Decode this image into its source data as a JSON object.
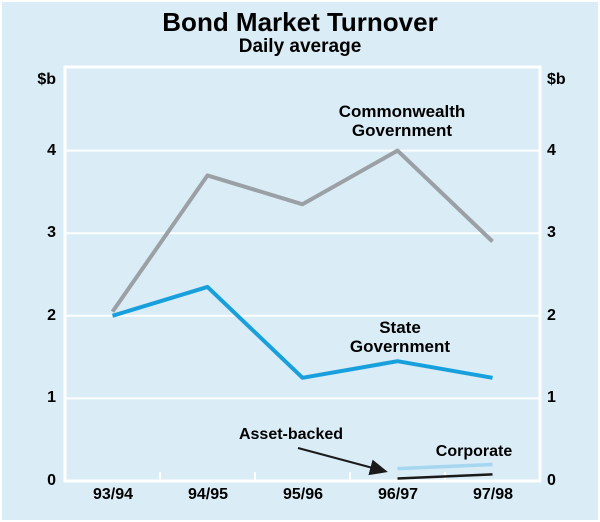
{
  "title": "Bond Market Turnover",
  "subtitle": "Daily average",
  "chart_data": {
    "type": "line",
    "title": "Bond Market Turnover",
    "subtitle": "Daily average",
    "unit_left": "$b",
    "unit_right": "$b",
    "categories": [
      "93/94",
      "94/95",
      "95/96",
      "96/97",
      "97/98"
    ],
    "series": [
      {
        "id": "commonwealth-government",
        "name": "Commonwealth Government",
        "color": "#9aa0a5",
        "values": [
          2.05,
          3.7,
          3.35,
          4.0,
          2.9
        ]
      },
      {
        "id": "state-government",
        "name": "State Government",
        "color": "#18a0dc",
        "values": [
          2.0,
          2.35,
          1.25,
          1.45,
          1.25
        ]
      },
      {
        "id": "corporate",
        "name": "Corporate",
        "color": "#a6d6f0",
        "values": [
          null,
          null,
          null,
          0.15,
          0.2
        ]
      },
      {
        "id": "asset-backed",
        "name": "Asset-backed",
        "color": "#1a1a1a",
        "values": [
          null,
          null,
          null,
          0.03,
          0.08
        ]
      }
    ],
    "ylim": [
      0,
      5
    ],
    "yticks": [
      0,
      1,
      2,
      3,
      4
    ],
    "grid": "horizontal-white",
    "legend_position": "inline-labels",
    "background_color": "#daecf6",
    "frame_color": "#ffffff"
  },
  "annotations": {
    "commonwealth_government": [
      "Commonwealth",
      "Government"
    ],
    "state_government": [
      "State",
      "Government"
    ],
    "asset_backed": "Asset-backed",
    "corporate": "Corporate"
  }
}
